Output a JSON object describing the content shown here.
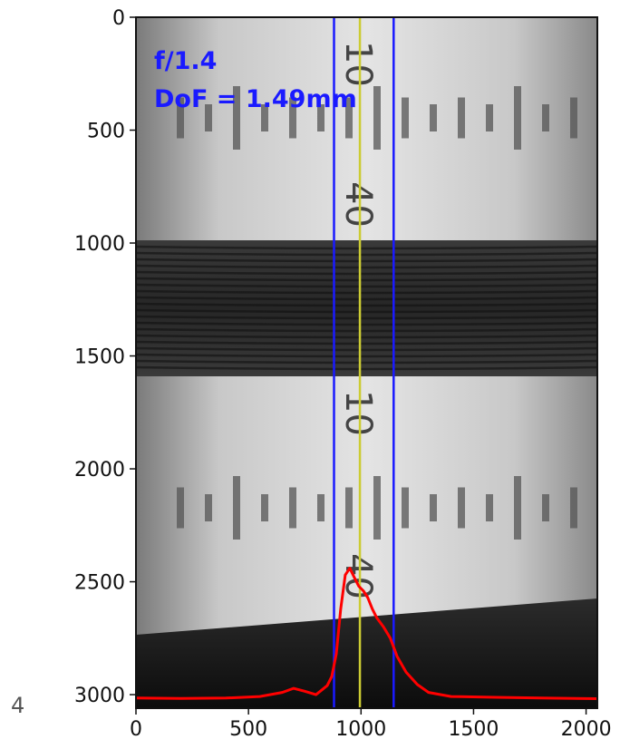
{
  "chart_data": {
    "type": "line",
    "title": "",
    "xlabel": "",
    "ylabel": "",
    "xlim": [
      0,
      2050
    ],
    "ylim": [
      3060,
      0
    ],
    "y_inverted": true,
    "x_ticks": [
      "0",
      "500",
      "1000",
      "1500",
      "2000"
    ],
    "y_ticks": [
      "0",
      "500",
      "1000",
      "1500",
      "2000",
      "2500",
      "3000"
    ],
    "annotations": [
      "f/1.4",
      "DoF = 1.49mm"
    ],
    "corner_label": "4",
    "background": "grayscale photograph of a depth-of-field test target: ruler scale with tick marks, numbers 10 and 40, and a dark band of fine stripes",
    "vertical_lines": [
      {
        "x": 880,
        "color": "#1a1aff"
      },
      {
        "x": 995,
        "color": "#cccc33"
      },
      {
        "x": 1145,
        "color": "#1a1aff"
      }
    ],
    "series": [
      {
        "color": "#ff0000",
        "x": [
          0,
          200,
          400,
          550,
          650,
          700,
          750,
          800,
          850,
          870,
          890,
          910,
          930,
          950,
          970,
          990,
          1010,
          1030,
          1050,
          1070,
          1100,
          1130,
          1160,
          1200,
          1250,
          1300,
          1400,
          1600,
          1800,
          2050
        ],
        "y": [
          3015,
          3017,
          3015,
          3008,
          2990,
          2972,
          2985,
          3000,
          2960,
          2920,
          2820,
          2620,
          2470,
          2440,
          2480,
          2520,
          2540,
          2570,
          2620,
          2660,
          2700,
          2750,
          2830,
          2900,
          2955,
          2990,
          3008,
          3012,
          3015,
          3018
        ]
      }
    ],
    "grid": false
  },
  "colors": {
    "annotation_text": "#1a1aff",
    "profile_line": "#ff0000",
    "bound_line": "#1a1aff",
    "center_line": "#cccc33"
  }
}
